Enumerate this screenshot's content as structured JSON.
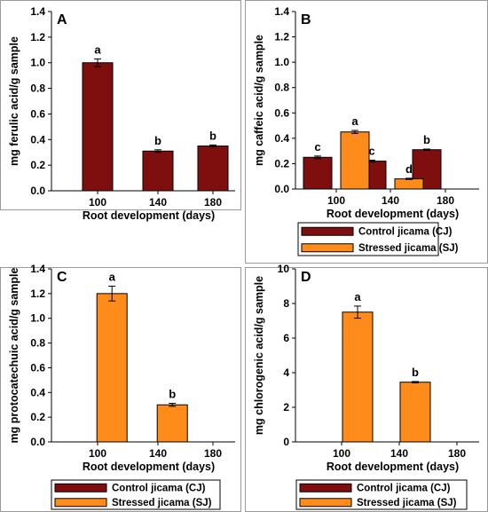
{
  "colors": {
    "control": "#7f0f0f",
    "stressed": "#ff8c1a",
    "legend_border": "#000000"
  },
  "legend": {
    "control": "Control jicama (CJ)",
    "stressed": "Stressed jicama (SJ)"
  },
  "chart_data": [
    {
      "panel": "A",
      "type": "bar",
      "xlabel": "Root development (days)",
      "ylabel": "mg ferulic acid/g sample",
      "categories": [
        "100",
        "140",
        "180"
      ],
      "ylim": [
        0,
        1.4
      ],
      "yticks": [
        "0.0",
        "0.2",
        "0.4",
        "0.6",
        "0.8",
        "1.0",
        "1.2",
        "1.4"
      ],
      "has_legend": false,
      "series": [
        {
          "name": "Control jicama (CJ)",
          "key": "control",
          "values": [
            1.0,
            0.31,
            0.35
          ],
          "errors": [
            0.03,
            0.01,
            0.008
          ],
          "labels": [
            "a",
            "b",
            "b"
          ]
        },
        {
          "name": "Stressed jicama (SJ)",
          "key": "stressed",
          "values": [
            null,
            null,
            null
          ],
          "errors": [
            null,
            null,
            null
          ],
          "labels": [
            "",
            "",
            ""
          ]
        }
      ]
    },
    {
      "panel": "B",
      "type": "bar",
      "xlabel": "Root development (days)",
      "ylabel": "mg caffeic acid/g sample",
      "categories": [
        "100",
        "140",
        "180"
      ],
      "ylim": [
        0,
        1.4
      ],
      "yticks": [
        "0.0",
        "0.2",
        "0.4",
        "0.6",
        "0.8",
        "1.0",
        "1.2",
        "1.4"
      ],
      "has_legend": true,
      "series": [
        {
          "name": "Control jicama (CJ)",
          "key": "control",
          "values": [
            0.25,
            0.22,
            0.31
          ],
          "errors": [
            0.01,
            0.008,
            0.005
          ],
          "labels": [
            "c",
            "c",
            "b"
          ]
        },
        {
          "name": "Stressed jicama (SJ)",
          "key": "stressed",
          "values": [
            0.45,
            0.08,
            null
          ],
          "errors": [
            0.012,
            0.005,
            null
          ],
          "labels": [
            "a",
            "d",
            ""
          ]
        }
      ]
    },
    {
      "panel": "C",
      "type": "bar",
      "xlabel": "Root development (days)",
      "ylabel": "mg protocatechuic acid/g sample",
      "categories": [
        "100",
        "140",
        "180"
      ],
      "ylim": [
        0,
        1.4
      ],
      "yticks": [
        "0.0",
        "0.2",
        "0.4",
        "0.6",
        "0.8",
        "1.0",
        "1.2",
        "1.4"
      ],
      "has_legend": true,
      "series": [
        {
          "name": "Control jicama (CJ)",
          "key": "control",
          "values": [
            null,
            null,
            null
          ],
          "errors": [
            null,
            null,
            null
          ],
          "labels": [
            "",
            "",
            ""
          ]
        },
        {
          "name": "Stressed jicama (SJ)",
          "key": "stressed",
          "values": [
            1.2,
            0.3,
            null
          ],
          "errors": [
            0.06,
            0.012,
            null
          ],
          "labels": [
            "a",
            "b",
            ""
          ]
        }
      ]
    },
    {
      "panel": "D",
      "type": "bar",
      "xlabel": "Root development (days)",
      "ylabel": "mg chlorogenic acid/g sample",
      "categories": [
        "100",
        "140",
        "180"
      ],
      "ylim": [
        0,
        10
      ],
      "yticks": [
        "0",
        "2",
        "4",
        "6",
        "8",
        "10"
      ],
      "has_legend": true,
      "series": [
        {
          "name": "Control jicama (CJ)",
          "key": "control",
          "values": [
            null,
            null,
            null
          ],
          "errors": [
            null,
            null,
            null
          ],
          "labels": [
            "",
            "",
            ""
          ]
        },
        {
          "name": "Stressed jicama (SJ)",
          "key": "stressed",
          "values": [
            7.5,
            3.45,
            null
          ],
          "errors": [
            0.35,
            0.04,
            null
          ],
          "labels": [
            "a",
            "b",
            ""
          ]
        }
      ]
    }
  ]
}
